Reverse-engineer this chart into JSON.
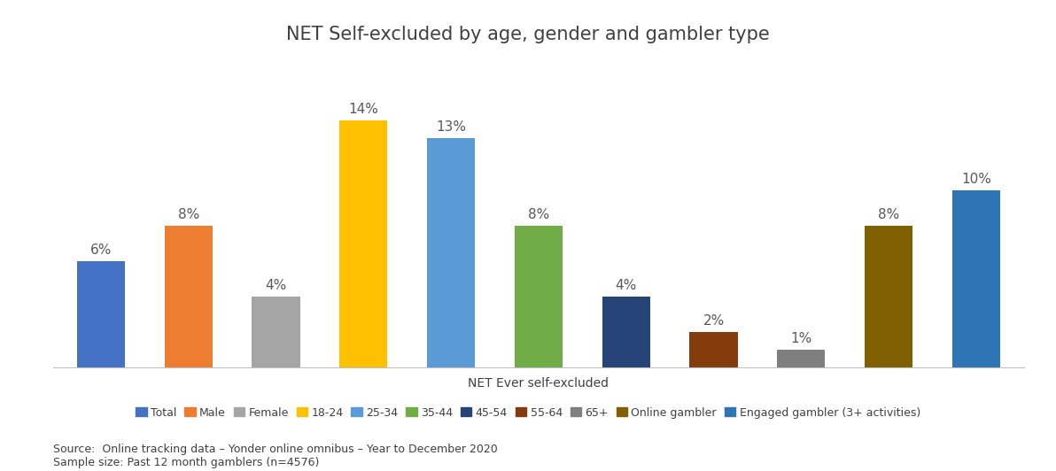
{
  "title": "NET Self-excluded by age, gender and gambler type",
  "xlabel": "NET Ever self-excluded",
  "categories": [
    "Total",
    "Male",
    "Female",
    "18-24",
    "25-34",
    "35-44",
    "45-54",
    "55-64",
    "65+",
    "Online gambler",
    "Engaged gambler (3+ activities)"
  ],
  "values": [
    6,
    8,
    4,
    14,
    13,
    8,
    4,
    2,
    1,
    8,
    10
  ],
  "colors": [
    "#4472C4",
    "#ED7D31",
    "#A5A5A5",
    "#FFC000",
    "#5B9BD5",
    "#70AD47",
    "#264478",
    "#843C0C",
    "#7F7F7F",
    "#806000",
    "#2E75B6"
  ],
  "legend_labels": [
    "Total",
    "Male",
    "Female",
    "18-24",
    "25-34",
    "35-44",
    "45-54",
    "55-64",
    "65+",
    "Online gambler",
    "Engaged gambler (3+ activities)"
  ],
  "source_line1": "Source:  Online tracking data – Yonder online omnibus – Year to December 2020",
  "source_line2": "Sample size: Past 12 month gamblers (n=4576)",
  "ylim": [
    0,
    16
  ],
  "title_color": "#404040",
  "source_color": "#404040",
  "bg_color": "#FFFFFF",
  "bar_label_color": "#595959",
  "bar_label_fontsize": 11,
  "title_fontsize": 15,
  "xlabel_fontsize": 10,
  "legend_fontsize": 9
}
